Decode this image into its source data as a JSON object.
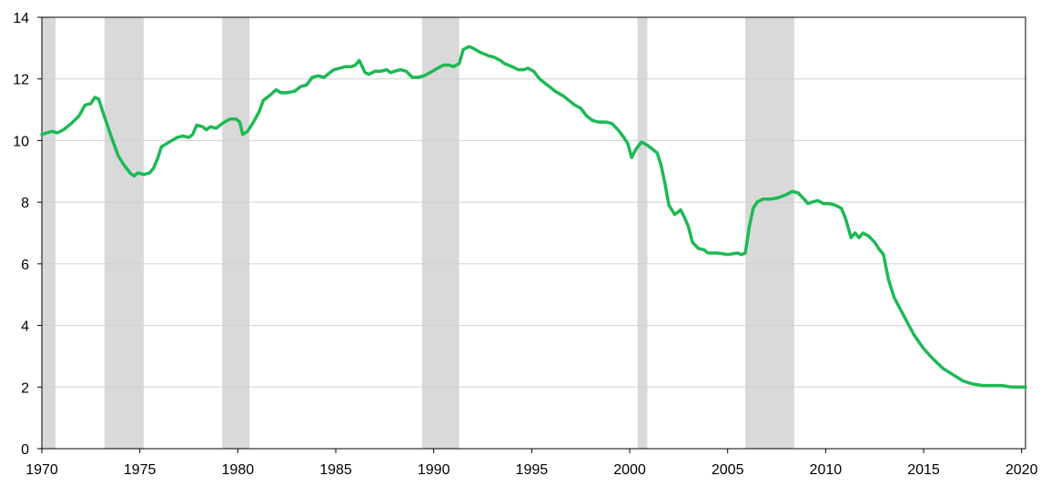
{
  "chart_data": {
    "type": "line",
    "title": "",
    "xlabel": "",
    "ylabel": "",
    "xlim": [
      1970,
      2020.2
    ],
    "ylim": [
      0,
      14
    ],
    "x_ticks": [
      1970,
      1975,
      1980,
      1985,
      1990,
      1995,
      2000,
      2005,
      2010,
      2015,
      2020
    ],
    "y_ticks": [
      0,
      2,
      4,
      6,
      8,
      10,
      12,
      14
    ],
    "x_tick_labels": [
      "1970",
      "1975",
      "1980",
      "1985",
      "1990",
      "1995",
      "2000",
      "2005",
      "2010",
      "2015",
      "2020"
    ],
    "y_tick_labels": [
      "0",
      "2",
      "4",
      "6",
      "8",
      "10",
      "12",
      "14"
    ],
    "grid": "horizontal",
    "legend": "none",
    "line_color": "#1db954",
    "band_color": "#d9d9d9",
    "shaded_periods": [
      [
        1970.0,
        1970.7
      ],
      [
        1973.2,
        1975.2
      ],
      [
        1979.2,
        1980.6
      ],
      [
        1989.4,
        1991.3
      ],
      [
        2000.4,
        2000.9
      ],
      [
        2005.9,
        2008.4
      ]
    ],
    "series": [
      {
        "points": [
          [
            1970.0,
            10.2
          ],
          [
            1970.5,
            10.3
          ],
          [
            1970.8,
            10.25
          ],
          [
            1971.1,
            10.35
          ],
          [
            1971.5,
            10.55
          ],
          [
            1971.9,
            10.8
          ],
          [
            1972.2,
            11.15
          ],
          [
            1972.5,
            11.2
          ],
          [
            1972.7,
            11.4
          ],
          [
            1972.9,
            11.35
          ],
          [
            1973.1,
            10.95
          ],
          [
            1973.5,
            10.2
          ],
          [
            1973.9,
            9.5
          ],
          [
            1974.2,
            9.2
          ],
          [
            1974.5,
            8.95
          ],
          [
            1974.7,
            8.85
          ],
          [
            1974.9,
            8.95
          ],
          [
            1975.2,
            8.9
          ],
          [
            1975.5,
            8.95
          ],
          [
            1975.7,
            9.1
          ],
          [
            1975.9,
            9.4
          ],
          [
            1976.1,
            9.8
          ],
          [
            1976.5,
            9.95
          ],
          [
            1976.9,
            10.1
          ],
          [
            1977.2,
            10.15
          ],
          [
            1977.5,
            10.1
          ],
          [
            1977.7,
            10.2
          ],
          [
            1977.9,
            10.5
          ],
          [
            1978.2,
            10.45
          ],
          [
            1978.4,
            10.35
          ],
          [
            1978.6,
            10.45
          ],
          [
            1978.9,
            10.4
          ],
          [
            1979.2,
            10.55
          ],
          [
            1979.6,
            10.7
          ],
          [
            1979.9,
            10.7
          ],
          [
            1980.1,
            10.6
          ],
          [
            1980.25,
            10.2
          ],
          [
            1980.5,
            10.3
          ],
          [
            1980.8,
            10.6
          ],
          [
            1981.1,
            10.95
          ],
          [
            1981.3,
            11.3
          ],
          [
            1981.7,
            11.5
          ],
          [
            1981.95,
            11.65
          ],
          [
            1982.2,
            11.55
          ],
          [
            1982.5,
            11.55
          ],
          [
            1982.9,
            11.6
          ],
          [
            1983.2,
            11.75
          ],
          [
            1983.5,
            11.8
          ],
          [
            1983.8,
            12.05
          ],
          [
            1984.1,
            12.1
          ],
          [
            1984.4,
            12.05
          ],
          [
            1984.7,
            12.2
          ],
          [
            1984.9,
            12.3
          ],
          [
            1985.2,
            12.35
          ],
          [
            1985.5,
            12.4
          ],
          [
            1985.8,
            12.4
          ],
          [
            1986.0,
            12.45
          ],
          [
            1986.2,
            12.6
          ],
          [
            1986.5,
            12.2
          ],
          [
            1986.7,
            12.15
          ],
          [
            1987.0,
            12.25
          ],
          [
            1987.3,
            12.25
          ],
          [
            1987.6,
            12.3
          ],
          [
            1987.8,
            12.2
          ],
          [
            1988.0,
            12.25
          ],
          [
            1988.3,
            12.3
          ],
          [
            1988.6,
            12.25
          ],
          [
            1988.9,
            12.05
          ],
          [
            1989.2,
            12.05
          ],
          [
            1989.5,
            12.1
          ],
          [
            1989.8,
            12.2
          ],
          [
            1990.2,
            12.35
          ],
          [
            1990.5,
            12.45
          ],
          [
            1990.8,
            12.45
          ],
          [
            1991.0,
            12.4
          ],
          [
            1991.3,
            12.5
          ],
          [
            1991.5,
            12.95
          ],
          [
            1991.8,
            13.05
          ],
          [
            1992.0,
            13.0
          ],
          [
            1992.4,
            12.85
          ],
          [
            1992.8,
            12.75
          ],
          [
            1993.1,
            12.7
          ],
          [
            1993.4,
            12.6
          ],
          [
            1993.6,
            12.5
          ],
          [
            1994.0,
            12.4
          ],
          [
            1994.3,
            12.3
          ],
          [
            1994.6,
            12.3
          ],
          [
            1994.8,
            12.35
          ],
          [
            1995.1,
            12.25
          ],
          [
            1995.4,
            12.0
          ],
          [
            1995.8,
            11.8
          ],
          [
            1996.2,
            11.6
          ],
          [
            1996.6,
            11.45
          ],
          [
            1996.9,
            11.3
          ],
          [
            1997.2,
            11.15
          ],
          [
            1997.5,
            11.05
          ],
          [
            1997.8,
            10.8
          ],
          [
            1998.1,
            10.65
          ],
          [
            1998.4,
            10.6
          ],
          [
            1998.8,
            10.6
          ],
          [
            1999.1,
            10.55
          ],
          [
            1999.4,
            10.35
          ],
          [
            1999.7,
            10.1
          ],
          [
            1999.9,
            9.9
          ],
          [
            2000.1,
            9.45
          ],
          [
            2000.3,
            9.7
          ],
          [
            2000.6,
            9.95
          ],
          [
            2000.9,
            9.85
          ],
          [
            2001.1,
            9.75
          ],
          [
            2001.4,
            9.6
          ],
          [
            2001.6,
            9.2
          ],
          [
            2001.8,
            8.6
          ],
          [
            2002.0,
            7.9
          ],
          [
            2002.3,
            7.6
          ],
          [
            2002.6,
            7.75
          ],
          [
            2002.8,
            7.5
          ],
          [
            2003.0,
            7.2
          ],
          [
            2003.2,
            6.7
          ],
          [
            2003.5,
            6.5
          ],
          [
            2003.8,
            6.45
          ],
          [
            2004.0,
            6.35
          ],
          [
            2004.5,
            6.35
          ],
          [
            2005.0,
            6.3
          ],
          [
            2005.5,
            6.35
          ],
          [
            2005.7,
            6.3
          ],
          [
            2005.9,
            6.35
          ],
          [
            2006.1,
            7.2
          ],
          [
            2006.3,
            7.8
          ],
          [
            2006.5,
            8.0
          ],
          [
            2006.8,
            8.1
          ],
          [
            2007.2,
            8.1
          ],
          [
            2007.6,
            8.15
          ],
          [
            2008.0,
            8.25
          ],
          [
            2008.3,
            8.35
          ],
          [
            2008.6,
            8.3
          ],
          [
            2008.9,
            8.1
          ],
          [
            2009.1,
            7.95
          ],
          [
            2009.3,
            8.0
          ],
          [
            2009.6,
            8.05
          ],
          [
            2009.9,
            7.95
          ],
          [
            2010.2,
            7.95
          ],
          [
            2010.5,
            7.9
          ],
          [
            2010.8,
            7.8
          ],
          [
            2011.0,
            7.5
          ],
          [
            2011.3,
            6.85
          ],
          [
            2011.5,
            7.0
          ],
          [
            2011.7,
            6.85
          ],
          [
            2011.9,
            7.0
          ],
          [
            2012.2,
            6.9
          ],
          [
            2012.5,
            6.7
          ],
          [
            2012.7,
            6.5
          ],
          [
            2012.95,
            6.3
          ],
          [
            2013.2,
            5.5
          ],
          [
            2013.5,
            4.9
          ],
          [
            2014.0,
            4.3
          ],
          [
            2014.5,
            3.7
          ],
          [
            2015.0,
            3.25
          ],
          [
            2015.5,
            2.9
          ],
          [
            2016.0,
            2.6
          ],
          [
            2016.5,
            2.4
          ],
          [
            2017.0,
            2.2
          ],
          [
            2017.5,
            2.1
          ],
          [
            2018.0,
            2.05
          ],
          [
            2018.5,
            2.05
          ],
          [
            2019.0,
            2.05
          ],
          [
            2019.5,
            2.0
          ],
          [
            2020.2,
            2.0
          ]
        ]
      }
    ]
  }
}
